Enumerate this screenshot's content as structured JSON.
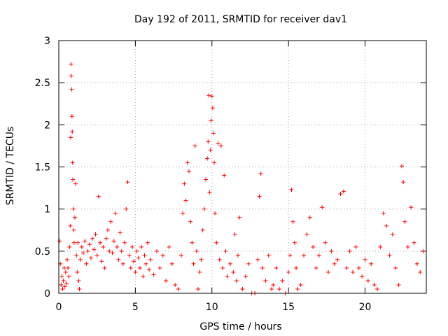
{
  "chart_data": {
    "type": "scatter",
    "title": "Day 192 of 2011, SRMTID for receiver dav1",
    "xlabel": "GPS time / hours",
    "ylabel": "SRMTID / TECUs",
    "xlim": [
      0,
      24
    ],
    "ylim": [
      0,
      3
    ],
    "xticks": [
      0,
      5,
      10,
      15,
      20
    ],
    "yticks": [
      0,
      0.5,
      1,
      1.5,
      2,
      2.5,
      3
    ],
    "xtick_labels": [
      "0",
      "5",
      "10",
      "15",
      "20"
    ],
    "ytick_labels": [
      "0",
      "0.5",
      "1",
      "1.5",
      "2",
      "2.5",
      "3"
    ],
    "grid": true,
    "marker": "+",
    "series_color": "#ff0000",
    "grid_color": "#a0a0a0",
    "series": [
      {
        "name": "SRMTID",
        "points": [
          [
            0.05,
            0.62
          ],
          [
            0.1,
            0.35
          ],
          [
            0.15,
            0.1
          ],
          [
            0.2,
            0.2
          ],
          [
            0.25,
            0.05
          ],
          [
            0.3,
            0.15
          ],
          [
            0.35,
            0.3
          ],
          [
            0.4,
            0.08
          ],
          [
            0.45,
            0.25
          ],
          [
            0.5,
            0.12
          ],
          [
            0.55,
            0.4
          ],
          [
            0.6,
            0.3
          ],
          [
            0.65,
            0.2
          ],
          [
            0.7,
            0.55
          ],
          [
            0.75,
            0.8
          ],
          [
            0.78,
            1.85
          ],
          [
            0.8,
            2.72
          ],
          [
            0.82,
            2.58
          ],
          [
            0.84,
            2.42
          ],
          [
            0.86,
            2.1
          ],
          [
            0.88,
            1.92
          ],
          [
            0.9,
            1.55
          ],
          [
            0.92,
            1.35
          ],
          [
            0.95,
            1.0
          ],
          [
            0.98,
            0.75
          ],
          [
            1.0,
            0.6
          ],
          [
            1.05,
            0.9
          ],
          [
            1.1,
            1.3
          ],
          [
            1.15,
            0.45
          ],
          [
            1.2,
            0.25
          ],
          [
            1.25,
            0.6
          ],
          [
            1.3,
            0.15
          ],
          [
            1.35,
            0.05
          ],
          [
            1.4,
            0.4
          ],
          [
            1.5,
            0.55
          ],
          [
            1.6,
            0.48
          ],
          [
            1.7,
            0.62
          ],
          [
            1.8,
            0.35
          ],
          [
            1.9,
            0.5
          ],
          [
            2.0,
            0.58
          ],
          [
            2.1,
            0.42
          ],
          [
            2.2,
            0.65
          ],
          [
            2.3,
            0.52
          ],
          [
            2.4,
            0.7
          ],
          [
            2.5,
            0.45
          ],
          [
            2.6,
            1.15
          ],
          [
            2.7,
            0.6
          ],
          [
            2.8,
            0.38
          ],
          [
            2.9,
            0.55
          ],
          [
            3.0,
            0.3
          ],
          [
            3.1,
            0.65
          ],
          [
            3.2,
            0.75
          ],
          [
            3.3,
            0.5
          ],
          [
            3.4,
            0.85
          ],
          [
            3.5,
            0.48
          ],
          [
            3.6,
            0.62
          ],
          [
            3.7,
            0.95
          ],
          [
            3.8,
            0.55
          ],
          [
            3.9,
            0.4
          ],
          [
            4.0,
            0.72
          ],
          [
            4.1,
            0.5
          ],
          [
            4.2,
            0.35
          ],
          [
            4.3,
            0.6
          ],
          [
            4.4,
            1.0
          ],
          [
            4.5,
            1.32
          ],
          [
            4.6,
            0.45
          ],
          [
            4.7,
            0.3
          ],
          [
            4.8,
            0.55
          ],
          [
            4.9,
            0.38
          ],
          [
            5.0,
            0.25
          ],
          [
            5.1,
            0.5
          ],
          [
            5.2,
            0.42
          ],
          [
            5.3,
            0.3
          ],
          [
            5.4,
            0.55
          ],
          [
            5.5,
            0.2
          ],
          [
            5.6,
            0.45
          ],
          [
            5.7,
            0.35
          ],
          [
            5.8,
            0.6
          ],
          [
            5.9,
            0.28
          ],
          [
            6.0,
            0.4
          ],
          [
            6.2,
            0.22
          ],
          [
            6.4,
            0.5
          ],
          [
            6.6,
            0.3
          ],
          [
            6.8,
            0.45
          ],
          [
            7.0,
            0.15
          ],
          [
            7.2,
            0.55
          ],
          [
            7.4,
            0.35
          ],
          [
            7.6,
            0.1
          ],
          [
            7.8,
            0.05
          ],
          [
            8.0,
            0.45
          ],
          [
            8.1,
            0.95
          ],
          [
            8.2,
            1.3
          ],
          [
            8.3,
            1.1
          ],
          [
            8.4,
            1.55
          ],
          [
            8.5,
            1.45
          ],
          [
            8.6,
            0.85
          ],
          [
            8.7,
            0.6
          ],
          [
            8.8,
            0.35
          ],
          [
            8.9,
            1.75
          ],
          [
            9.0,
            0.5
          ],
          [
            9.1,
            0.05
          ],
          [
            9.2,
            0.25
          ],
          [
            9.3,
            0.4
          ],
          [
            9.4,
            0.75
          ],
          [
            9.5,
            1.0
          ],
          [
            9.6,
            1.35
          ],
          [
            9.7,
            1.6
          ],
          [
            9.75,
            1.8
          ],
          [
            9.8,
            2.35
          ],
          [
            9.85,
            1.2
          ],
          [
            9.9,
            1.7
          ],
          [
            9.95,
            2.05
          ],
          [
            10.0,
            2.34
          ],
          [
            10.05,
            2.2
          ],
          [
            10.1,
            1.9
          ],
          [
            10.15,
            1.55
          ],
          [
            10.2,
            0.95
          ],
          [
            10.3,
            0.6
          ],
          [
            10.4,
            1.78
          ],
          [
            10.5,
            0.4
          ],
          [
            10.6,
            1.75
          ],
          [
            10.7,
            0.3
          ],
          [
            10.8,
            1.4
          ],
          [
            10.9,
            0.5
          ],
          [
            11.0,
            0.2
          ],
          [
            11.2,
            0.35
          ],
          [
            11.4,
            0.25
          ],
          [
            11.5,
            0.7
          ],
          [
            11.6,
            0.15
          ],
          [
            11.7,
            0.45
          ],
          [
            11.8,
            0.9
          ],
          [
            12.0,
            0.05
          ],
          [
            12.2,
            0.2
          ],
          [
            12.4,
            0.35
          ],
          [
            12.6,
            0.0
          ],
          [
            12.8,
            0.0
          ],
          [
            13.0,
            0.4
          ],
          [
            13.1,
            1.15
          ],
          [
            13.2,
            1.42
          ],
          [
            13.3,
            0.3
          ],
          [
            13.5,
            0.15
          ],
          [
            13.7,
            0.45
          ],
          [
            13.9,
            0.05
          ],
          [
            14.0,
            0.1
          ],
          [
            14.2,
            0.3
          ],
          [
            14.4,
            0.05
          ],
          [
            14.6,
            0.15
          ],
          [
            14.8,
            0.0
          ],
          [
            15.0,
            0.25
          ],
          [
            15.1,
            0.45
          ],
          [
            15.2,
            1.23
          ],
          [
            15.3,
            0.85
          ],
          [
            15.4,
            0.6
          ],
          [
            15.5,
            0.3
          ],
          [
            15.6,
            0.05
          ],
          [
            15.8,
            0.1
          ],
          [
            16.0,
            0.45
          ],
          [
            16.2,
            0.7
          ],
          [
            16.4,
            0.9
          ],
          [
            16.6,
            0.55
          ],
          [
            16.8,
            0.3
          ],
          [
            17.0,
            0.45
          ],
          [
            17.2,
            1.02
          ],
          [
            17.4,
            0.6
          ],
          [
            17.6,
            0.25
          ],
          [
            17.8,
            0.5
          ],
          [
            18.0,
            0.35
          ],
          [
            18.2,
            0.4
          ],
          [
            18.4,
            1.18
          ],
          [
            18.6,
            1.21
          ],
          [
            18.8,
            0.3
          ],
          [
            19.0,
            0.5
          ],
          [
            19.2,
            0.25
          ],
          [
            19.4,
            0.55
          ],
          [
            19.6,
            0.3
          ],
          [
            19.8,
            0.2
          ],
          [
            20.0,
            0.4
          ],
          [
            20.2,
            0.15
          ],
          [
            20.4,
            0.35
          ],
          [
            20.6,
            0.1
          ],
          [
            20.8,
            0.05
          ],
          [
            21.0,
            0.55
          ],
          [
            21.2,
            0.95
          ],
          [
            21.4,
            0.8
          ],
          [
            21.6,
            0.45
          ],
          [
            21.8,
            0.7
          ],
          [
            22.0,
            0.3
          ],
          [
            22.2,
            0.1
          ],
          [
            22.4,
            1.51
          ],
          [
            22.5,
            1.32
          ],
          [
            22.6,
            0.85
          ],
          [
            22.8,
            0.55
          ],
          [
            23.0,
            1.02
          ],
          [
            23.2,
            0.6
          ],
          [
            23.4,
            0.35
          ],
          [
            23.6,
            0.25
          ],
          [
            23.8,
            0.5
          ]
        ]
      }
    ]
  }
}
